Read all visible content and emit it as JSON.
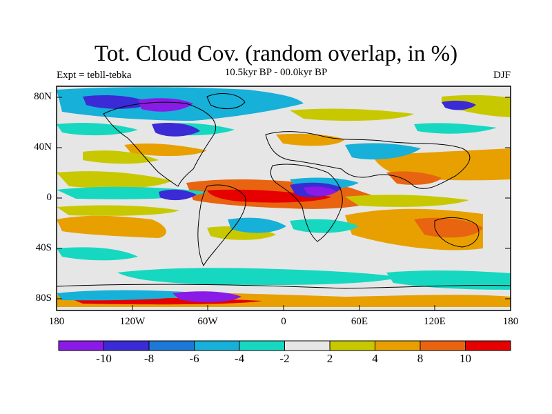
{
  "title": "Tot. Cloud Cov. (random overlap, in %)",
  "subtitle": "10.5kyr BP - 00.0kyr BP",
  "left_label": "Expt = tebll-tebka",
  "right_label": "DJF",
  "lat_ticks": [
    "80N",
    "40N",
    "0",
    "40S",
    "80S"
  ],
  "lon_ticks": [
    "180",
    "120W",
    "60W",
    "0",
    "60E",
    "120E",
    "180"
  ],
  "colorbar": {
    "colors": [
      "#8a1ae6",
      "#3a2bd6",
      "#1e78d8",
      "#16b0d8",
      "#16d8c0",
      "#e6e6e6",
      "#c8c800",
      "#e8a000",
      "#e86410",
      "#e60000"
    ],
    "labels": [
      "-10",
      "-8",
      "-6",
      "-4",
      "-2",
      "2",
      "4",
      "8",
      "10"
    ]
  }
}
